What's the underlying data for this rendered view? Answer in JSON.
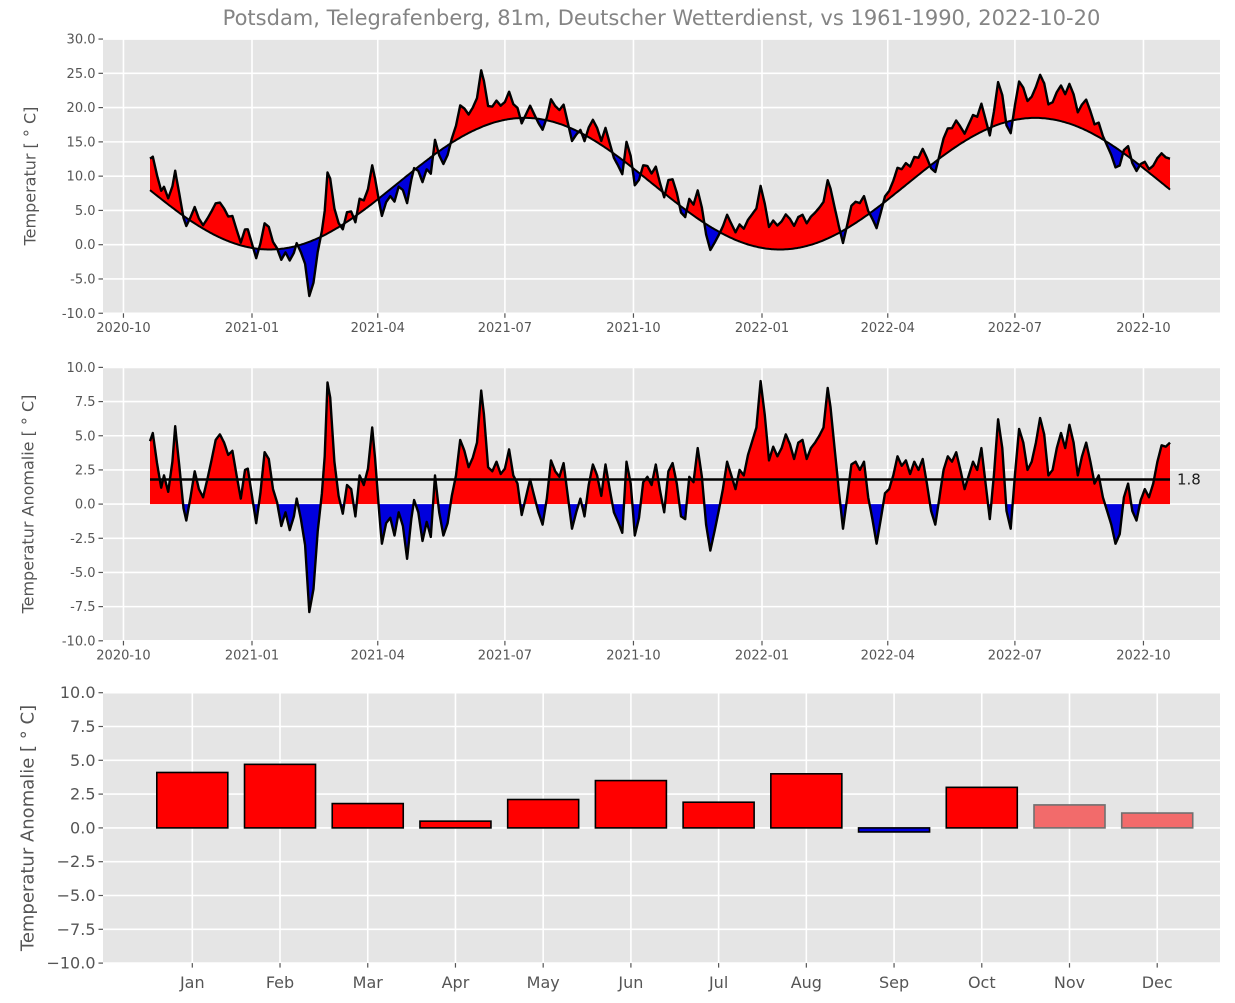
{
  "title": "Potsdam, Telegrafenberg, 81m, Deutscher Wetterdienst, vs 1961-1990, 2022-10-20",
  "colors": {
    "figure_background": "#ffffff",
    "axes_background": "#e5e5e5",
    "grid": "#ffffff",
    "warm": "#ff0000",
    "cold": "#0000dd",
    "line": "#000000",
    "tick_label": "#555555",
    "title_text": "#848484",
    "annotation_text": "#1d1d1d",
    "faded_warm_fill": "#f26b6b",
    "faded_warm_stroke": "#707070"
  },
  "chart_data": [
    {
      "type": "area",
      "name": "daily-temperature-vs-climatology",
      "ylabel": "Temperatur [ ° C]",
      "ylim": [
        -10,
        30
      ],
      "ytick_values": [
        30,
        25,
        20,
        15,
        10,
        5,
        0,
        -5,
        -10
      ],
      "ytick_labels": [
        "30.0",
        "25.0",
        "20.0",
        "15.0",
        "10.0",
        "5.0",
        "0.0",
        "-5.0",
        "-10.0"
      ],
      "xtick_labels": [
        "2020-10",
        "2021-01",
        "2021-04",
        "2021-07",
        "2021-10",
        "2022-01",
        "2022-04",
        "2022-07",
        "2022-10"
      ],
      "xtick_days": [
        -19,
        73,
        163,
        254,
        346,
        438,
        528,
        619,
        711
      ],
      "start_date": "2020-10-20",
      "end_date": "2022-10-20",
      "days_total": 730,
      "grid": true,
      "climatology": {
        "mean": 8.9,
        "amplitude": 9.6,
        "peak_day_of_year": 197,
        "start_day_of_year": 294
      }
    },
    {
      "type": "area",
      "name": "daily-temperature-anomaly",
      "ylabel": "Temperatur Anomalie [ ° C]",
      "ylim": [
        -10,
        10
      ],
      "ytick_values": [
        10,
        7.5,
        5,
        2.5,
        0,
        -2.5,
        -5,
        -7.5,
        -10
      ],
      "ytick_labels": [
        "10.0",
        "7.5",
        "5.0",
        "2.5",
        "0.0",
        "-2.5",
        "-5.0",
        "-7.5",
        "-10.0"
      ],
      "xtick_labels": [
        "2020-10",
        "2021-01",
        "2021-04",
        "2021-07",
        "2021-10",
        "2022-01",
        "2022-04",
        "2022-07",
        "2022-10"
      ],
      "xtick_days": [
        -19,
        73,
        163,
        254,
        346,
        438,
        528,
        619,
        711
      ],
      "grid": true,
      "mean_line_value": 1.8,
      "annotation": "1.8",
      "anomaly_points": [
        [
          0,
          4.6
        ],
        [
          2,
          5.2
        ],
        [
          5,
          3.0
        ],
        [
          8,
          1.2
        ],
        [
          10,
          2.1
        ],
        [
          13,
          0.9
        ],
        [
          16,
          3.1
        ],
        [
          18,
          5.7
        ],
        [
          21,
          2.8
        ],
        [
          24,
          -0.3
        ],
        [
          26,
          -1.2
        ],
        [
          29,
          0.5
        ],
        [
          32,
          2.4
        ],
        [
          35,
          1.1
        ],
        [
          38,
          0.5
        ],
        [
          41,
          1.8
        ],
        [
          44,
          3.2
        ],
        [
          47,
          4.7
        ],
        [
          50,
          5.1
        ],
        [
          53,
          4.5
        ],
        [
          56,
          3.6
        ],
        [
          59,
          3.9
        ],
        [
          62,
          2.1
        ],
        [
          65,
          0.4
        ],
        [
          68,
          2.5
        ],
        [
          70,
          2.6
        ],
        [
          73,
          0.6
        ],
        [
          76,
          -1.4
        ],
        [
          79,
          0.8
        ],
        [
          82,
          3.8
        ],
        [
          85,
          3.3
        ],
        [
          88,
          1.1
        ],
        [
          91,
          0.1
        ],
        [
          94,
          -1.6
        ],
        [
          97,
          -0.6
        ],
        [
          100,
          -1.9
        ],
        [
          103,
          -0.9
        ],
        [
          105,
          0.4
        ],
        [
          108,
          -1.1
        ],
        [
          111,
          -3.0
        ],
        [
          114,
          -7.9
        ],
        [
          117,
          -6.2
        ],
        [
          120,
          -2.0
        ],
        [
          123,
          0.8
        ],
        [
          125,
          3.5
        ],
        [
          127,
          8.9
        ],
        [
          129,
          7.8
        ],
        [
          132,
          3.1
        ],
        [
          135,
          0.6
        ],
        [
          138,
          -0.7
        ],
        [
          141,
          1.4
        ],
        [
          144,
          1.1
        ],
        [
          147,
          -0.9
        ],
        [
          150,
          2.1
        ],
        [
          153,
          1.4
        ],
        [
          156,
          2.6
        ],
        [
          159,
          5.6
        ],
        [
          161,
          3.4
        ],
        [
          164,
          -0.6
        ],
        [
          166,
          -2.9
        ],
        [
          169,
          -1.4
        ],
        [
          172,
          -1.0
        ],
        [
          175,
          -2.3
        ],
        [
          178,
          -0.6
        ],
        [
          181,
          -1.6
        ],
        [
          184,
          -4.0
        ],
        [
          187,
          -1.1
        ],
        [
          189,
          0.3
        ],
        [
          192,
          -0.6
        ],
        [
          195,
          -2.7
        ],
        [
          198,
          -1.3
        ],
        [
          201,
          -2.4
        ],
        [
          204,
          2.1
        ],
        [
          207,
          -0.6
        ],
        [
          210,
          -2.3
        ],
        [
          213,
          -1.4
        ],
        [
          216,
          0.6
        ],
        [
          219,
          2.1
        ],
        [
          222,
          4.7
        ],
        [
          225,
          3.9
        ],
        [
          228,
          2.7
        ],
        [
          231,
          3.4
        ],
        [
          234,
          4.5
        ],
        [
          237,
          8.3
        ],
        [
          239,
          6.6
        ],
        [
          242,
          2.7
        ],
        [
          245,
          2.4
        ],
        [
          248,
          3.1
        ],
        [
          251,
          2.2
        ],
        [
          254,
          2.6
        ],
        [
          257,
          4.0
        ],
        [
          260,
          2.1
        ],
        [
          263,
          1.5
        ],
        [
          266,
          -0.8
        ],
        [
          269,
          0.5
        ],
        [
          272,
          1.8
        ],
        [
          275,
          0.6
        ],
        [
          278,
          -0.6
        ],
        [
          281,
          -1.5
        ],
        [
          284,
          0.4
        ],
        [
          287,
          3.2
        ],
        [
          290,
          2.4
        ],
        [
          293,
          2.0
        ],
        [
          296,
          3.0
        ],
        [
          299,
          0.6
        ],
        [
          302,
          -1.8
        ],
        [
          305,
          -0.6
        ],
        [
          308,
          0.4
        ],
        [
          311,
          -0.9
        ],
        [
          314,
          1.4
        ],
        [
          317,
          2.9
        ],
        [
          320,
          2.1
        ],
        [
          323,
          0.6
        ],
        [
          326,
          2.9
        ],
        [
          329,
          1.1
        ],
        [
          332,
          -0.6
        ],
        [
          335,
          -1.3
        ],
        [
          338,
          -2.1
        ],
        [
          341,
          3.1
        ],
        [
          344,
          1.5
        ],
        [
          347,
          -2.3
        ],
        [
          350,
          -1.0
        ],
        [
          353,
          1.6
        ],
        [
          356,
          2.0
        ],
        [
          359,
          1.4
        ],
        [
          362,
          2.9
        ],
        [
          365,
          1.0
        ],
        [
          368,
          -0.6
        ],
        [
          371,
          2.4
        ],
        [
          374,
          3.0
        ],
        [
          377,
          1.5
        ],
        [
          380,
          -0.9
        ],
        [
          383,
          -1.1
        ],
        [
          386,
          2.0
        ],
        [
          389,
          1.6
        ],
        [
          392,
          4.1
        ],
        [
          395,
          2.0
        ],
        [
          398,
          -1.5
        ],
        [
          401,
          -3.4
        ],
        [
          404,
          -2.0
        ],
        [
          407,
          -0.5
        ],
        [
          410,
          1.1
        ],
        [
          413,
          3.1
        ],
        [
          416,
          2.1
        ],
        [
          419,
          1.1
        ],
        [
          422,
          2.5
        ],
        [
          425,
          2.1
        ],
        [
          428,
          3.6
        ],
        [
          431,
          4.6
        ],
        [
          434,
          5.6
        ],
        [
          437,
          9.0
        ],
        [
          440,
          6.5
        ],
        [
          443,
          3.2
        ],
        [
          446,
          4.2
        ],
        [
          449,
          3.5
        ],
        [
          452,
          4.1
        ],
        [
          455,
          5.1
        ],
        [
          458,
          4.4
        ],
        [
          461,
          3.3
        ],
        [
          464,
          4.5
        ],
        [
          467,
          4.7
        ],
        [
          470,
          3.3
        ],
        [
          473,
          4.1
        ],
        [
          476,
          4.5
        ],
        [
          479,
          5.0
        ],
        [
          482,
          5.6
        ],
        [
          485,
          8.5
        ],
        [
          487,
          7.1
        ],
        [
          490,
          4.0
        ],
        [
          493,
          1.0
        ],
        [
          496,
          -1.8
        ],
        [
          499,
          0.5
        ],
        [
          502,
          2.9
        ],
        [
          505,
          3.1
        ],
        [
          508,
          2.5
        ],
        [
          511,
          3.1
        ],
        [
          514,
          0.5
        ],
        [
          517,
          -1.1
        ],
        [
          520,
          -2.9
        ],
        [
          523,
          -1.1
        ],
        [
          526,
          0.8
        ],
        [
          529,
          1.1
        ],
        [
          532,
          2.1
        ],
        [
          535,
          3.5
        ],
        [
          538,
          2.8
        ],
        [
          541,
          3.2
        ],
        [
          544,
          2.2
        ],
        [
          547,
          3.1
        ],
        [
          550,
          2.5
        ],
        [
          553,
          3.3
        ],
        [
          556,
          1.5
        ],
        [
          559,
          -0.5
        ],
        [
          562,
          -1.5
        ],
        [
          565,
          0.5
        ],
        [
          568,
          2.5
        ],
        [
          571,
          3.5
        ],
        [
          574,
          3.1
        ],
        [
          577,
          3.8
        ],
        [
          580,
          2.5
        ],
        [
          583,
          1.1
        ],
        [
          586,
          2.1
        ],
        [
          589,
          3.1
        ],
        [
          592,
          2.5
        ],
        [
          595,
          4.1
        ],
        [
          598,
          1.5
        ],
        [
          601,
          -1.1
        ],
        [
          604,
          2.1
        ],
        [
          607,
          6.2
        ],
        [
          610,
          4.1
        ],
        [
          613,
          -0.5
        ],
        [
          616,
          -1.8
        ],
        [
          619,
          2.1
        ],
        [
          622,
          5.5
        ],
        [
          625,
          4.5
        ],
        [
          628,
          2.5
        ],
        [
          631,
          3.1
        ],
        [
          634,
          4.5
        ],
        [
          637,
          6.3
        ],
        [
          640,
          5.1
        ],
        [
          643,
          2.1
        ],
        [
          646,
          2.5
        ],
        [
          649,
          4.1
        ],
        [
          652,
          5.2
        ],
        [
          655,
          4.1
        ],
        [
          658,
          5.8
        ],
        [
          661,
          4.5
        ],
        [
          664,
          2.1
        ],
        [
          667,
          3.5
        ],
        [
          670,
          4.5
        ],
        [
          673,
          3.1
        ],
        [
          676,
          1.5
        ],
        [
          679,
          2.1
        ],
        [
          682,
          0.5
        ],
        [
          685,
          -0.5
        ],
        [
          688,
          -1.5
        ],
        [
          691,
          -2.9
        ],
        [
          694,
          -2.2
        ],
        [
          697,
          0.5
        ],
        [
          700,
          1.5
        ],
        [
          703,
          -0.5
        ],
        [
          706,
          -1.2
        ],
        [
          709,
          0.3
        ],
        [
          712,
          1.1
        ],
        [
          715,
          0.5
        ],
        [
          718,
          1.5
        ],
        [
          721,
          3.1
        ],
        [
          724,
          4.3
        ],
        [
          727,
          4.2
        ],
        [
          730,
          4.5
        ]
      ]
    },
    {
      "type": "bar",
      "name": "monthly-temperature-anomaly",
      "ylabel": "Temperatur Anomalie [ ° C]",
      "ylim": [
        -10,
        10
      ],
      "ytick_values": [
        10,
        7.5,
        5,
        2.5,
        0,
        -2.5,
        -5,
        -7.5,
        -10
      ],
      "ytick_labels": [
        "10.0",
        "7.5",
        "5.0",
        "2.5",
        "0.0",
        "−2.5",
        "−5.0",
        "−7.5",
        "−10.0"
      ],
      "categories": [
        "Jan",
        "Feb",
        "Mar",
        "Apr",
        "May",
        "Jun",
        "Jul",
        "Aug",
        "Sep",
        "Oct",
        "Nov",
        "Dec"
      ],
      "values": [
        4.1,
        4.7,
        1.8,
        0.5,
        2.1,
        3.5,
        1.9,
        4.0,
        -0.3,
        3.0,
        1.7,
        1.1
      ],
      "faded": [
        false,
        false,
        false,
        false,
        false,
        false,
        false,
        false,
        false,
        false,
        true,
        true
      ],
      "grid": true
    }
  ]
}
